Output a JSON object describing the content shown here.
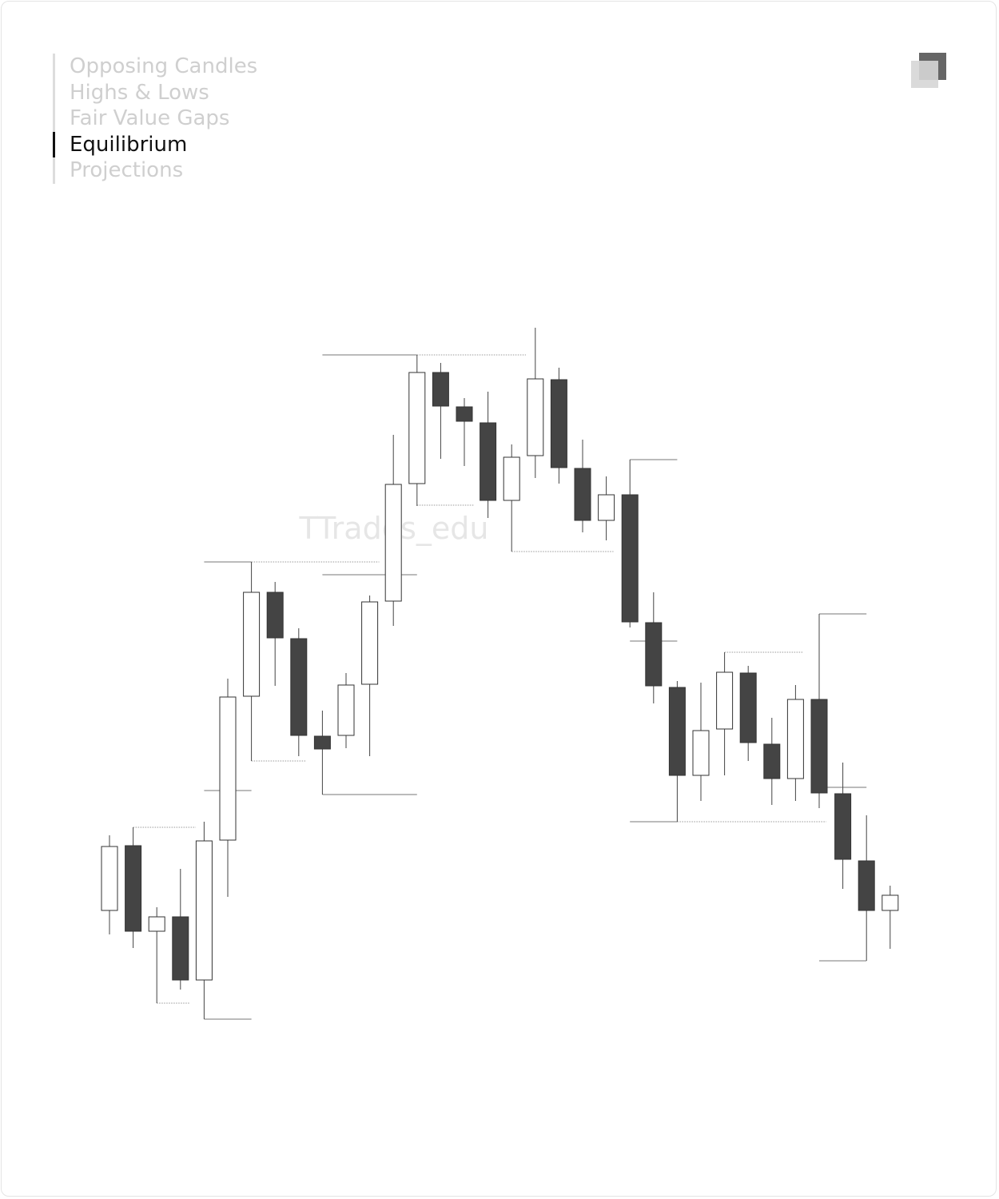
{
  "menu": {
    "items": [
      "Opposing Candles",
      "Highs & Lows",
      "Fair Value Gaps",
      "Equilibrium",
      "Projections"
    ],
    "active": 3
  },
  "chart_data": {
    "type": "candlestick",
    "watermark": "TTrades_edu",
    "open": [
      16.1,
      24.2,
      13.5,
      15.3,
      7.4,
      24.9,
      42.9,
      55.9,
      50.1,
      37.9,
      38.0,
      44.4,
      54.8,
      69.5,
      83.4,
      79.1,
      77.1,
      67.4,
      73.0,
      82.5,
      71.4,
      64.9,
      68.1,
      52.1,
      44.0,
      33.0,
      38.8,
      45.8,
      36.9,
      32.6,
      42.5,
      30.7,
      22.3,
      16.1
    ],
    "high": [
      25.5,
      26.5,
      16.5,
      21.3,
      27.2,
      45.1,
      59.7,
      57.2,
      51.4,
      41.1,
      45.8,
      55.5,
      75.6,
      85.6,
      84.6,
      80.2,
      81.0,
      74.4,
      89.0,
      84.0,
      75.0,
      70.4,
      72.5,
      55.9,
      44.8,
      44.6,
      48.4,
      46.7,
      40.2,
      44.3,
      53.2,
      34.6,
      28.0,
      19.2
    ],
    "low": [
      13.1,
      11.4,
      4.5,
      6.2,
      2.5,
      17.8,
      34.8,
      44.2,
      35.4,
      30.6,
      36.4,
      35.4,
      51.7,
      66.7,
      72.6,
      71.7,
      65.2,
      61.0,
      70.2,
      69.5,
      63.4,
      62.4,
      51.5,
      42.0,
      27.2,
      29.8,
      33.0,
      34.8,
      29.3,
      29.8,
      28.9,
      18.8,
      9.8,
      11.3
    ],
    "close": [
      24.1,
      13.5,
      15.3,
      7.4,
      24.8,
      42.8,
      55.9,
      50.2,
      38.0,
      36.3,
      44.3,
      54.7,
      69.4,
      83.4,
      79.2,
      77.3,
      67.4,
      72.8,
      82.6,
      71.5,
      64.9,
      68.1,
      52.2,
      44.2,
      33.0,
      38.6,
      45.9,
      37.1,
      32.6,
      42.5,
      30.8,
      22.5,
      16.1,
      18.0
    ],
    "up_color": "#ffffff",
    "down_color": "#444444",
    "ylim": [
      0,
      100
    ],
    "levels": [
      {
        "value": 85.6,
        "from": 9,
        "to": 13,
        "style": "solid"
      },
      {
        "value": 85.6,
        "from": 13,
        "to": 17.6,
        "style": "dotted"
      },
      {
        "value": 59.7,
        "from": 4,
        "to": 6,
        "style": "solid"
      },
      {
        "value": 59.7,
        "from": 6,
        "to": 11.4,
        "style": "dotted"
      },
      {
        "value": 58.1,
        "from": 9,
        "to": 13,
        "style": "solid"
      },
      {
        "value": 31.1,
        "from": 4,
        "to": 6,
        "style": "solid"
      },
      {
        "value": 26.5,
        "from": 1,
        "to": 3.65,
        "style": "dotted"
      },
      {
        "value": 4.5,
        "from": 2,
        "to": 3.4,
        "style": "dotted"
      },
      {
        "value": 2.5,
        "from": 4,
        "to": 6,
        "style": "solid"
      },
      {
        "value": 34.8,
        "from": 6,
        "to": 8.3,
        "style": "dotted"
      },
      {
        "value": 30.6,
        "from": 9,
        "to": 13,
        "style": "solid"
      },
      {
        "value": 66.8,
        "from": 13,
        "to": 15.4,
        "style": "dotted"
      },
      {
        "value": 61.0,
        "from": 17,
        "to": 21.3,
        "style": "dotted"
      },
      {
        "value": 72.5,
        "from": 22,
        "to": 24,
        "style": "solid"
      },
      {
        "value": 49.8,
        "from": 22,
        "to": 24,
        "style": "solid"
      },
      {
        "value": 27.2,
        "from": 22,
        "to": 24,
        "style": "solid"
      },
      {
        "value": 27.2,
        "from": 24,
        "to": 30.3,
        "style": "dotted"
      },
      {
        "value": 48.4,
        "from": 26,
        "to": 29.3,
        "style": "dotted"
      },
      {
        "value": 53.2,
        "from": 30,
        "to": 32,
        "style": "solid"
      },
      {
        "value": 31.5,
        "from": 30,
        "to": 32,
        "style": "solid"
      },
      {
        "value": 9.8,
        "from": 30,
        "to": 32,
        "style": "solid"
      }
    ]
  }
}
